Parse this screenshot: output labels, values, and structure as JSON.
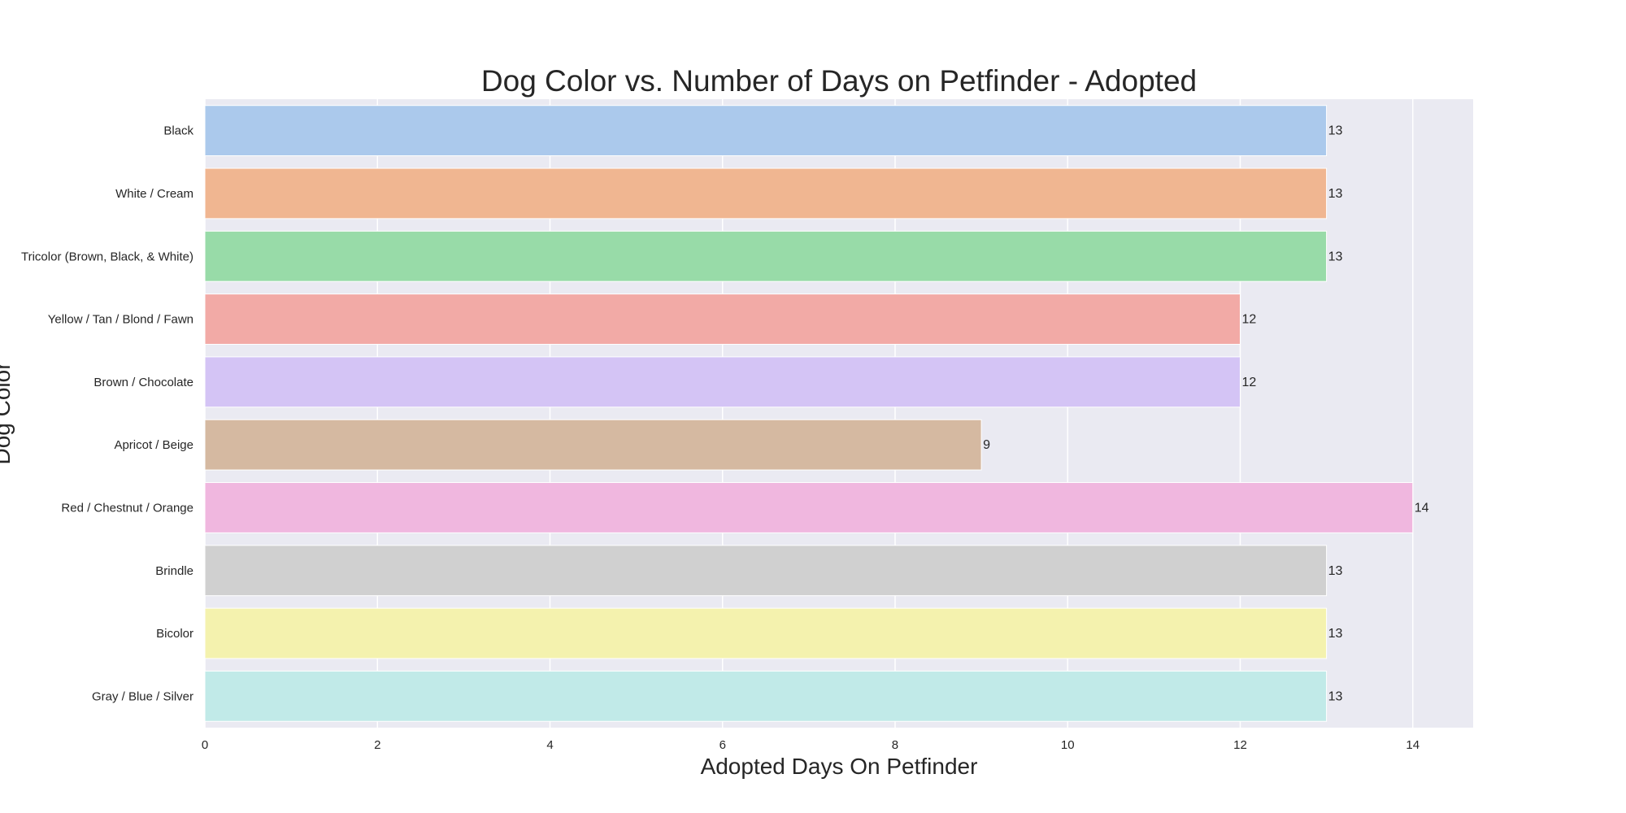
{
  "chart_data": {
    "type": "bar",
    "orientation": "horizontal",
    "title": "Dog Color vs. Number of Days on Petfinder - Adopted",
    "xlabel": "Adopted Days On Petfinder",
    "ylabel": "Dog Color",
    "categories": [
      "Black",
      "White / Cream",
      "Tricolor (Brown, Black, & White)",
      "Yellow / Tan / Blond / Fawn",
      "Brown / Chocolate",
      "Apricot / Beige",
      "Red / Chestnut / Orange",
      "Brindle",
      "Bicolor",
      "Gray / Blue / Silver"
    ],
    "values": [
      13,
      13,
      13,
      12,
      12,
      9,
      14,
      13,
      13,
      13
    ],
    "data_labels": [
      "13",
      "13",
      "13",
      "12",
      "12",
      "9",
      "14",
      "13",
      "13",
      "13"
    ],
    "colors": [
      "#abc9ec",
      "#f0b691",
      "#98dba8",
      "#f2aaa6",
      "#d4c4f5",
      "#d5b9a1",
      "#f0b7df",
      "#d0d0d0",
      "#f4f2ae",
      "#c1eae8"
    ],
    "xlim": [
      0,
      14.7
    ],
    "xticks": [
      0,
      2,
      4,
      6,
      8,
      10,
      12,
      14
    ],
    "xtick_labels": [
      "0",
      "2",
      "4",
      "6",
      "8",
      "10",
      "12",
      "14"
    ],
    "grid": true,
    "background_color": "#eaeaf2"
  }
}
